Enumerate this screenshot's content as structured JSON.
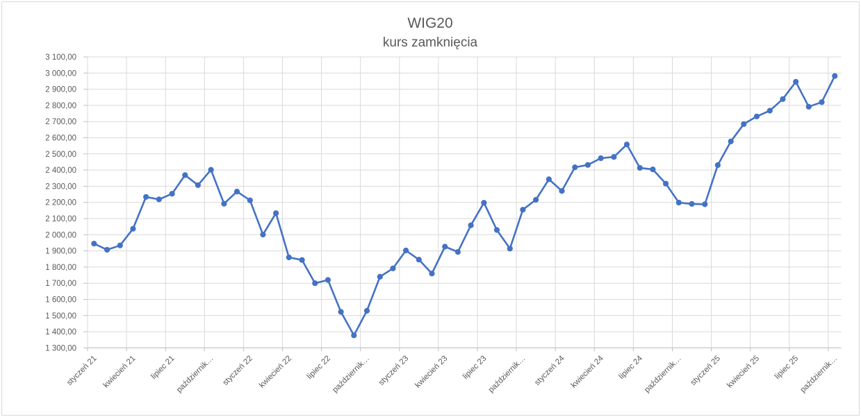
{
  "chart": {
    "title": "WIG20",
    "subtitle": "kurs zamknięcia"
  },
  "chart_data": {
    "type": "line",
    "title": "WIG20",
    "subtitle": "kurs zamknięcia",
    "series_name": "WIG20 kurs zamknięcia",
    "months": [
      "2021-01",
      "2021-02",
      "2021-03",
      "2021-04",
      "2021-05",
      "2021-06",
      "2021-07",
      "2021-08",
      "2021-09",
      "2021-10",
      "2021-11",
      "2021-12",
      "2022-01",
      "2022-02",
      "2022-03",
      "2022-04",
      "2022-05",
      "2022-06",
      "2022-07",
      "2022-08",
      "2022-09",
      "2022-10",
      "2022-11",
      "2022-12",
      "2023-01",
      "2023-02",
      "2023-03",
      "2023-04",
      "2023-05",
      "2023-06",
      "2023-07",
      "2023-08",
      "2023-09",
      "2023-10",
      "2023-11",
      "2023-12",
      "2024-01",
      "2024-02",
      "2024-03",
      "2024-04",
      "2024-05",
      "2024-06",
      "2024-07",
      "2024-08",
      "2024-09",
      "2024-10",
      "2024-11",
      "2024-12",
      "2025-01",
      "2025-02",
      "2025-03",
      "2025-04",
      "2025-05",
      "2025-06",
      "2025-07",
      "2025-08",
      "2025-09",
      "2025-10"
    ],
    "values": [
      1945.21,
      1906.91,
      1934.03,
      2036.92,
      2233.77,
      2218.35,
      2253.84,
      2368.62,
      2306.82,
      2401.82,
      2191.94,
      2266.79,
      2212.68,
      2000.88,
      2133.56,
      1859.55,
      1843.97,
      1699.83,
      1720.25,
      1522.62,
      1377.64,
      1529.52,
      1739.77,
      1791.83,
      1902.74,
      1845.89,
      1760.07,
      1926.31,
      1893.43,
      2058.27,
      2197.91,
      2029.15,
      1914.0,
      2154.85,
      2215.91,
      2342.99,
      2270.74,
      2417.04,
      2431.59,
      2473.22,
      2481.33,
      2558.33,
      2413.12,
      2404.31,
      2315.93,
      2198.6,
      2190.77,
      2188.23,
      2430.45,
      2577.26,
      2684.72,
      2731.55,
      2767.21,
      2838.94,
      2945.87,
      2791.64,
      2820.13,
      2981.95
    ],
    "x_tick_labels": [
      "styczeń 21",
      "kwiecień 21",
      "lipiec 21",
      "październik…",
      "styczeń 22",
      "kwiecień 22",
      "lipiec 22",
      "październik…",
      "styczeń 23",
      "kwiecień 23",
      "lipiec 23",
      "październik…",
      "styczeń 24",
      "kwiecień 24",
      "lipiec 24",
      "październik…",
      "styczeń 25",
      "kwiecień 25",
      "lipiec 25",
      "październik…"
    ],
    "y_tick_labels": [
      "3 100,00",
      "3 000,00",
      "2 900,00",
      "2 800,00",
      "2 700,00",
      "2 600,00",
      "2 500,00",
      "2 400,00",
      "2 300,00",
      "2 200,00",
      "2 100,00",
      "2 000,00",
      "1 900,00",
      "1 800,00",
      "1 700,00",
      "1 600,00",
      "1 500,00",
      "1 400,00",
      "1 300,00"
    ],
    "ylim": [
      1300,
      3100
    ],
    "y_step": 100,
    "x_major_every_months": 3,
    "grid": true,
    "legend": "none",
    "line_color": "#4472C4",
    "marker": "circle",
    "grid_color": "#D9D9D9",
    "axis_color": "#BFBFBF",
    "text_color": "#595959",
    "background": "#FFFFFF"
  }
}
